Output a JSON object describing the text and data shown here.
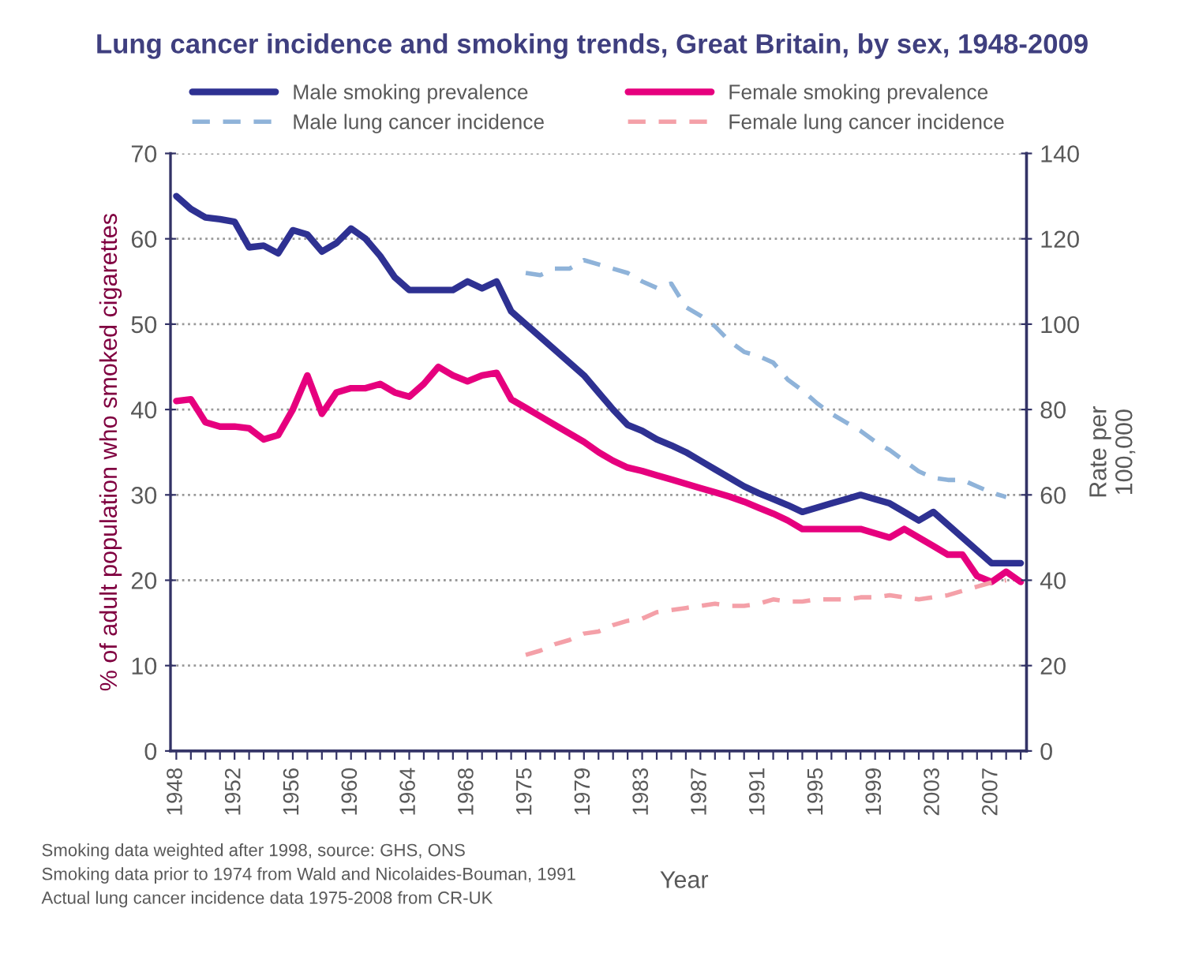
{
  "chart_data": {
    "type": "line",
    "title": "Lung cancer incidence and smoking trends, Great Britain, by sex, 1948-2009",
    "xlabel": "Year",
    "ylabel": "% of adult population who smoked cigarettes",
    "y2label": "Rate per\n100,000",
    "categories": [
      "1948",
      null,
      null,
      null,
      "1952",
      null,
      null,
      null,
      "1956",
      null,
      null,
      null,
      "1960",
      null,
      null,
      null,
      "1964",
      null,
      null,
      null,
      "1968",
      null,
      null,
      null,
      "1975",
      null,
      null,
      null,
      "1979",
      null,
      null,
      null,
      "1983",
      null,
      null,
      null,
      "1987",
      null,
      null,
      null,
      "1991",
      null,
      null,
      null,
      "1995",
      null,
      null,
      null,
      "1999",
      null,
      null,
      null,
      "2003",
      null,
      null,
      null,
      "2007",
      null,
      null
    ],
    "series": [
      {
        "name": "Male smoking prevalence",
        "color": "#2e3192",
        "line_style": "solid",
        "values": [
          65,
          63.5,
          62.5,
          62.3,
          62,
          59,
          59.2,
          58.3,
          61,
          60.5,
          58.5,
          59.5,
          61.2,
          60,
          58,
          55.5,
          54,
          54,
          54,
          54,
          55,
          54.2,
          55,
          51.5,
          50,
          48.5,
          47,
          45.5,
          44,
          42,
          40,
          38.2,
          37.5,
          36.5,
          35.8,
          35,
          34,
          33,
          32,
          31,
          30.2,
          29.5,
          28.8,
          28,
          28.5,
          29,
          29.5,
          30,
          29.5,
          29,
          28,
          27,
          28,
          26.5,
          25,
          23.5,
          22,
          22,
          22
        ]
      },
      {
        "name": "Male lung cancer incidence",
        "color": "#8fb3d9",
        "line_style": "dashed",
        "axis": "y2",
        "values": [
          null,
          null,
          null,
          null,
          null,
          null,
          null,
          null,
          null,
          null,
          null,
          null,
          null,
          null,
          null,
          null,
          null,
          null,
          null,
          null,
          null,
          null,
          null,
          null,
          112,
          111.5,
          113,
          113,
          115,
          114,
          113,
          112,
          110,
          108.5,
          109.5,
          104,
          102,
          99.5,
          96,
          93.5,
          92.5,
          91,
          87,
          84.5,
          81.5,
          79,
          77,
          75,
          72.5,
          70.5,
          68,
          65.5,
          64,
          63.5,
          63.5,
          62,
          60.5,
          59.5,
          null
        ]
      },
      {
        "name": "Female smoking prevalence",
        "color": "#e6007e",
        "line_style": "solid",
        "values": [
          41,
          41.2,
          38.5,
          38,
          38,
          37.8,
          36.5,
          37,
          40,
          44,
          39.5,
          42,
          42.5,
          42.5,
          43,
          42,
          41.5,
          43,
          45,
          44,
          43.3,
          44,
          44.3,
          41.2,
          40.2,
          39.2,
          38.2,
          37.2,
          36.2,
          35,
          34,
          33.2,
          32.8,
          32.3,
          31.8,
          31.3,
          30.8,
          30.3,
          29.8,
          29.2,
          28.5,
          27.8,
          27,
          26,
          26,
          26,
          26,
          26,
          25.5,
          25,
          26,
          25,
          24,
          23,
          23,
          20.5,
          19.8,
          21,
          19.8
        ]
      },
      {
        "name": "Female lung cancer incidence",
        "color": "#f4a0a8",
        "line_style": "dashed",
        "axis": "y2",
        "values": [
          null,
          null,
          null,
          null,
          null,
          null,
          null,
          null,
          null,
          null,
          null,
          null,
          null,
          null,
          null,
          null,
          null,
          null,
          null,
          null,
          null,
          null,
          null,
          null,
          22.5,
          23.5,
          25,
          26,
          27.5,
          28,
          29.5,
          30.5,
          31,
          32.5,
          33,
          33.5,
          34,
          34.5,
          34,
          34,
          34.5,
          35.5,
          35,
          35,
          35.5,
          35.5,
          35.5,
          36,
          36,
          36.5,
          36,
          35.5,
          36,
          36.5,
          37.5,
          38.5,
          39.5,
          40,
          null
        ]
      }
    ],
    "ylim": [
      0,
      70
    ],
    "yticks": [
      0,
      10,
      20,
      30,
      40,
      50,
      60,
      70
    ],
    "y2lim": [
      0,
      140
    ],
    "y2ticks": [
      0,
      20,
      40,
      60,
      80,
      100,
      120,
      140
    ],
    "grid": "y",
    "legend": "top",
    "annotations": [
      "Smoking data weighted after 1998, source: GHS, ONS",
      "Smoking data prior to 1974 from Wald and Nicolaides-Bouman, 1991",
      "Actual lung cancer incidence data 1975-2008 from CR-UK"
    ]
  }
}
